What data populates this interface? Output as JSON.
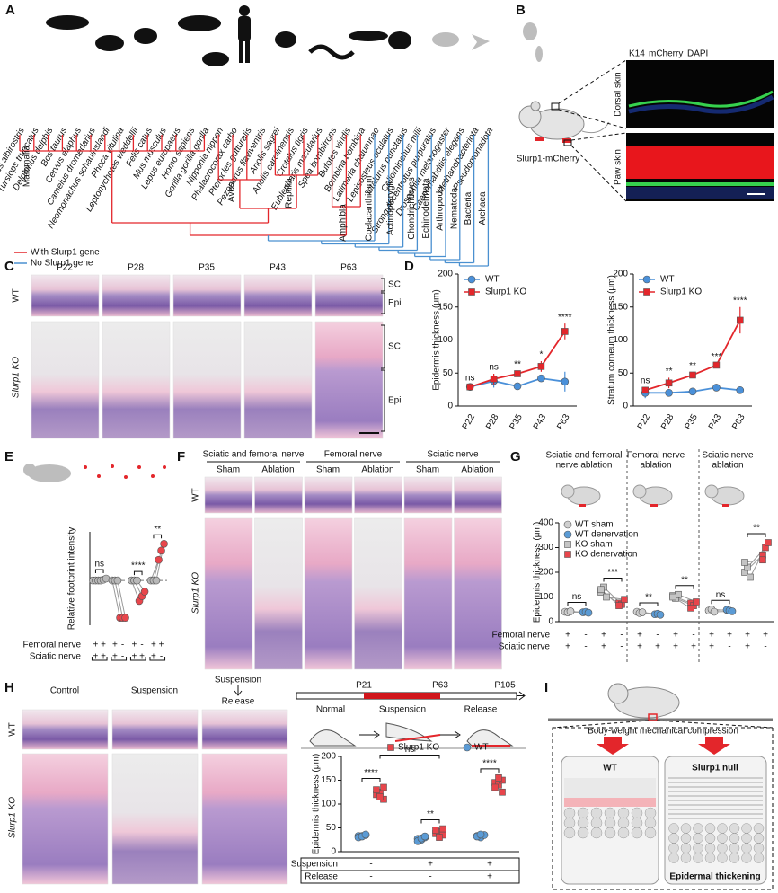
{
  "panel_labels": [
    "A",
    "B",
    "C",
    "D",
    "E",
    "F",
    "G",
    "H",
    "I"
  ],
  "panel_a": {
    "species_with": [
      "Lagenorhynchus albirostris",
      "Tursiops truncatus",
      "Delphinus delphis",
      "Bos taurus",
      "Cervus elaphus",
      "Camelus dromedarius",
      "Neomonachus schauinslandi",
      "Phoca vitulina",
      "Leptonychotes weddellii",
      "Felis catus",
      "Mus musculus",
      "Lepus europaeus",
      "Homo sapiens",
      "Gorilla gorilla gorilla",
      "Nipponia nippon",
      "Phalacrocorax carbo",
      "Pterocles gutturalis",
      "Pezoporus flaviventris",
      "Anolis sagrei",
      "Anolis carolinensis",
      "Crotalus tigris",
      "Eublepharis macularius",
      "Spea bombifrons",
      "Bufotes viridis",
      "Bombina bombina"
    ],
    "species_without": [
      "Latimeria chalumnae",
      "Lepisosteus oculatus",
      "Ictalurus punctatus",
      "Callorhinchus milii",
      "Strongylocentrotus purpuratus",
      "Drosophila melanogaster",
      "Caenorhabditis elegans",
      "Methanobacteriota",
      "Pseudomonadota"
    ],
    "groups_with": [
      "Mammalia",
      "Aves",
      "Reptilia",
      "Amphibia"
    ],
    "groups_without": [
      "Coelacanthiform",
      "Actinopterygii",
      "Chondrichthyes",
      "Echinodermata",
      "Arthropoda",
      "Nematoda",
      "Bacteria",
      "Archaea"
    ],
    "legend": [
      "With Slurp1 gene",
      "No Slurp1 gene"
    ],
    "colors": {
      "with": "#e3262b",
      "without": "#4a90d0"
    }
  },
  "panel_b": {
    "stains": [
      "K14",
      "mCherry",
      "DAPI"
    ],
    "regions": [
      "Dorsal skin",
      "Paw skin"
    ],
    "mouse": "Slurp1-mCherry"
  },
  "panel_c": {
    "ages": [
      "P22",
      "P28",
      "P35",
      "P43",
      "P63"
    ],
    "rows": [
      "WT",
      "Slurp1 KO"
    ],
    "layers_wt": [
      "SC",
      "Epi"
    ],
    "layers_ko": [
      "SC",
      "Epi"
    ]
  },
  "panel_f": {
    "nerves": [
      "Sciatic and femoral nerve",
      "Femoral nerve",
      "Sciatic nerve"
    ],
    "conditions": [
      "Sham",
      "Ablation",
      "Sham",
      "Ablation",
      "Sham",
      "Ablation"
    ],
    "rows": [
      "WT",
      "Slurp1 KO"
    ]
  },
  "panel_h": {
    "columns": [
      "Control",
      "Suspension"
    ],
    "release_column": {
      "top": "Suspension",
      "bottom": "Release"
    },
    "rows": [
      "WT",
      "Slurp1 KO"
    ],
    "ages": [
      "P21",
      "P63",
      "P105"
    ],
    "phases": [
      "Normal",
      "Suspension",
      "Release"
    ]
  },
  "panel_i": {
    "force": "Body-weight mechanical compression",
    "left": "WT",
    "right": "Slurp1 null",
    "note": "Epidermal thickening"
  },
  "chart_data": [
    {
      "type": "line",
      "y_label": "Epidermis thickness (μm)",
      "categories": [
        "P22",
        "P28",
        "P35",
        "P43",
        "P63"
      ],
      "series": [
        {
          "name": "WT",
          "color": "#4a90d9",
          "marker": "circle",
          "values": [
            29,
            38,
            30,
            42,
            37
          ],
          "errors": [
            4,
            10,
            5,
            4,
            15
          ]
        },
        {
          "name": "Slurp1 KO",
          "color": "#e3262b",
          "marker": "square",
          "values": [
            29,
            41,
            49,
            60,
            113
          ],
          "errors": [
            3,
            8,
            4,
            8,
            12
          ]
        }
      ],
      "significance": [
        "ns",
        "ns",
        "**",
        "*",
        "****"
      ],
      "ylim": [
        0,
        200
      ],
      "yticks": [
        0,
        50,
        100,
        150,
        200
      ]
    },
    {
      "type": "line",
      "y_label": "Stratum corneum thickness (μm)",
      "categories": [
        "P22",
        "P28",
        "P35",
        "P43",
        "P63"
      ],
      "series": [
        {
          "name": "WT",
          "color": "#4a90d9",
          "marker": "circle",
          "values": [
            20,
            20,
            22,
            28,
            24
          ],
          "errors": [
            8,
            5,
            3,
            5,
            3
          ]
        },
        {
          "name": "Slurp1 KO",
          "color": "#e3262b",
          "marker": "square",
          "values": [
            24,
            35,
            47,
            62,
            130
          ],
          "errors": [
            5,
            8,
            4,
            3,
            20
          ]
        }
      ],
      "significance": [
        "ns",
        "**",
        "**",
        "***",
        "****"
      ],
      "ylim": [
        0,
        200
      ],
      "yticks": [
        0,
        50,
        100,
        150,
        200
      ]
    },
    {
      "type": "paired-dot",
      "y_label": "Relative footprint intensity",
      "columns": [
        {
          "color": "#b8b8b8",
          "values": [
            1,
            1,
            1
          ]
        },
        {
          "color": "#b8b8b8",
          "values": [
            1,
            1.02,
            1.05
          ]
        },
        {
          "color": "#b8b8b8",
          "values": [
            1,
            1,
            1
          ]
        },
        {
          "color": "#e8454b",
          "values": [
            0,
            0,
            0
          ]
        },
        {
          "color": "#b8b8b8",
          "values": [
            1,
            1,
            1
          ]
        },
        {
          "color": "#e8454b",
          "values": [
            0.45,
            0.58,
            0.7
          ]
        },
        {
          "color": "#b8b8b8",
          "values": [
            1,
            1,
            1
          ]
        },
        {
          "color": "#e8454b",
          "values": [
            1.55,
            1.8,
            1.98
          ]
        }
      ],
      "significance": [
        "ns",
        null,
        "****",
        "**"
      ],
      "refline": 1,
      "ylim": [
        -0.2,
        2.3
      ],
      "row_labels": [
        "Femoral nerve",
        "Sciatic nerve"
      ],
      "rows": [
        [
          "+",
          "+",
          "+",
          "-",
          "+",
          "-",
          "+",
          "+"
        ],
        [
          "+",
          "+",
          "+",
          "-",
          "+",
          "+",
          "+",
          "-"
        ]
      ]
    },
    {
      "type": "grouped-paired",
      "y_label": "Epidermis thickness (μm)",
      "group_titles": [
        [
          "Sciatic and femoral",
          "nerve ablation"
        ],
        [
          "Femoral nerve",
          "ablation"
        ],
        [
          "Sciatic nerve",
          "ablation"
        ]
      ],
      "series": [
        {
          "name": "WT sham",
          "color": "#cfcfcf",
          "marker": "circle",
          "values": [
            [
              40,
              38,
              42
            ],
            [
              40,
              35,
              38
            ],
            [
              45,
              50,
              40
            ]
          ]
        },
        {
          "name": "WT denervation",
          "color": "#5b9bd5",
          "marker": "circle",
          "values": [
            [
              38,
              40,
              36
            ],
            [
              30,
              32,
              28
            ],
            [
              48,
              45,
              42
            ]
          ]
        },
        {
          "name": "KO sham",
          "color": "#c4c4c4",
          "marker": "square",
          "values": [
            [
              120,
              140,
              100,
              130
            ],
            [
              105,
              95,
              110,
              100
            ],
            [
              200,
              220,
              180,
              240
            ]
          ]
        },
        {
          "name": "KO denervation",
          "color": "#e8454b",
          "marker": "square",
          "values": [
            [
              75,
              70,
              90,
              65
            ],
            [
              75,
              65,
              80,
              55
            ],
            [
              270,
              300,
              320,
              250
            ]
          ]
        }
      ],
      "significance": [
        [
          "ns",
          "***"
        ],
        [
          "**",
          "**"
        ],
        [
          "ns",
          "**"
        ]
      ],
      "ylim": [
        0,
        400
      ],
      "yticks": [
        0,
        100,
        200,
        300,
        400
      ],
      "row_labels": [
        "Femoral nerve",
        "Sciatic nerve"
      ],
      "rows": [
        [
          "+",
          "-",
          "+",
          "-",
          "+",
          "-",
          "+",
          "-",
          "+",
          "+",
          "+",
          "+"
        ],
        [
          "+",
          "-",
          "+",
          "-",
          "+",
          "+",
          "+",
          "+",
          "+",
          "-",
          "+",
          "-"
        ]
      ]
    },
    {
      "type": "dot-strip",
      "y_label": "Epidermis thickness (μm)",
      "series": [
        {
          "name": "Slurp1 KO",
          "color": "#e8454b",
          "marker": "square",
          "values": [
            [
              120,
              125,
              110,
              130,
              115,
              135
            ],
            [
              38,
              42,
              35,
              45,
              30,
              48
            ],
            [
              145,
              140,
              150,
              135,
              155,
              125
            ]
          ]
        },
        {
          "name": "WT",
          "color": "#5b9bd5",
          "marker": "circle",
          "values": [
            [
              33,
              33,
              35,
              30,
              32,
              36
            ],
            [
              27,
              25,
              30,
              22,
              28,
              32
            ],
            [
              33,
              30,
              35,
              32,
              36
            ]
          ]
        }
      ],
      "significance": [
        "****",
        "ns",
        "**",
        "****"
      ],
      "ylim": [
        0,
        200
      ],
      "yticks": [
        0,
        50,
        100,
        150,
        200
      ],
      "table": {
        "row_labels": [
          "Suspension",
          "Release"
        ],
        "rows": [
          [
            "-",
            "+",
            "+"
          ],
          [
            "-",
            "-",
            "+"
          ]
        ]
      }
    }
  ]
}
